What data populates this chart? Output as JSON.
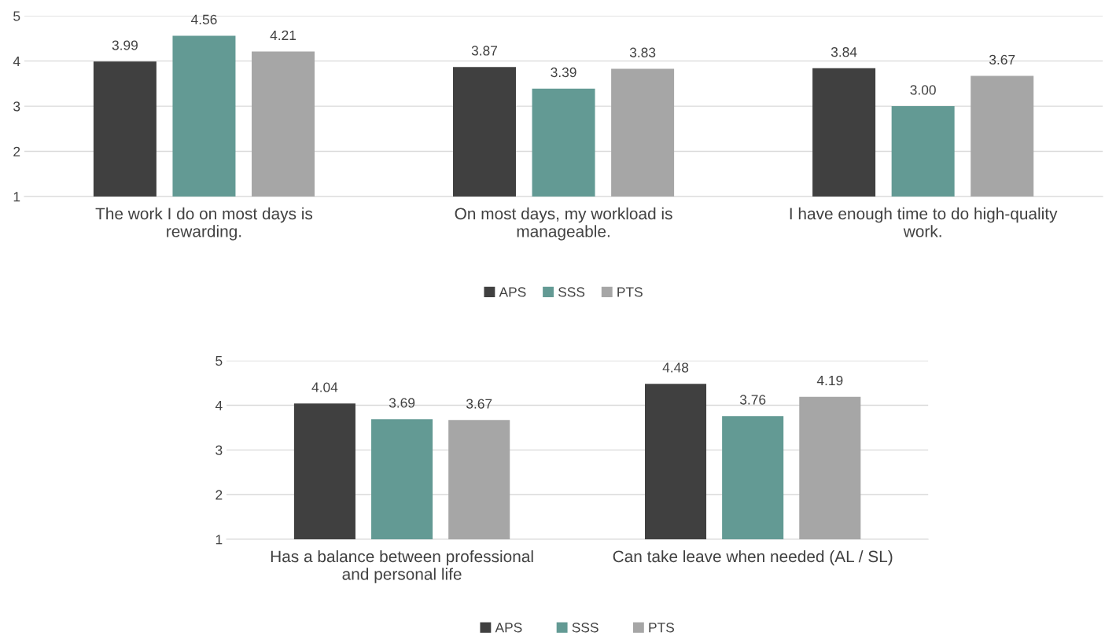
{
  "chart_data": [
    {
      "type": "bar",
      "categories": [
        "The work I do on most days is rewarding.",
        "On most days, my workload is manageable.",
        "I have enough time to do high-quality work."
      ],
      "series": [
        {
          "name": "APS",
          "color": "#404040",
          "values": [
            3.99,
            3.87,
            3.84
          ],
          "value_labels": [
            "3.99",
            "3.87",
            "3.84"
          ]
        },
        {
          "name": "SSS",
          "color": "#639a94",
          "values": [
            4.56,
            3.39,
            3.0
          ],
          "value_labels": [
            "4.56",
            "3.39",
            "3.00"
          ]
        },
        {
          "name": "PTS",
          "color": "#a6a6a6",
          "values": [
            4.21,
            3.83,
            3.67
          ],
          "value_labels": [
            "4.21",
            "3.83",
            "3.67"
          ]
        }
      ],
      "ylim": [
        1,
        5
      ],
      "yticks": [
        1,
        2,
        3,
        4,
        5
      ],
      "grid": "y",
      "legend": "bottom"
    },
    {
      "type": "bar",
      "categories": [
        "Has a balance between professional and personal life",
        "Can take leave when needed (AL / SL)"
      ],
      "series": [
        {
          "name": "APS",
          "color": "#404040",
          "values": [
            4.04,
            4.48
          ],
          "value_labels": [
            "4.04",
            "4.48"
          ]
        },
        {
          "name": "SSS",
          "color": "#639a94",
          "values": [
            3.69,
            3.76
          ],
          "value_labels": [
            "3.69",
            "3.76"
          ]
        },
        {
          "name": "PTS",
          "color": "#a6a6a6",
          "values": [
            3.67,
            4.19
          ],
          "value_labels": [
            "3.67",
            "4.19"
          ]
        }
      ],
      "ylim": [
        1,
        5
      ],
      "yticks": [
        1,
        2,
        3,
        4,
        5
      ],
      "grid": "y",
      "legend": "bottom"
    }
  ]
}
